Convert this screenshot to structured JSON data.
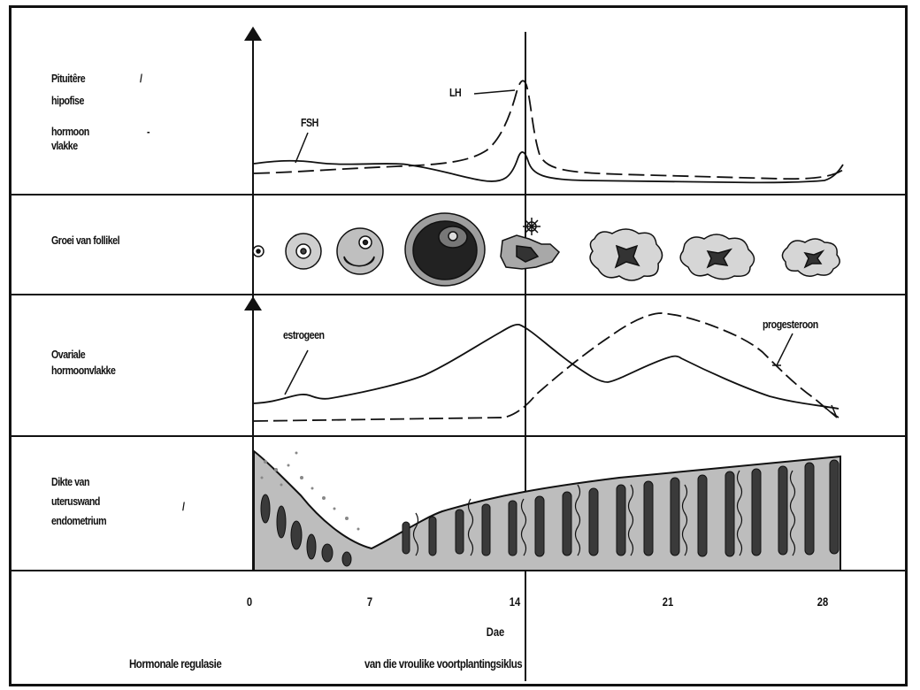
{
  "rows": {
    "pituitary": {
      "label_lines": [
        "Pituitêre",
        "hipofise",
        "hormoon",
        "vlakke"
      ],
      "marks": [
        "/",
        "-"
      ]
    },
    "follicle": {
      "label_lines": [
        "Groei van follikel"
      ]
    },
    "ovarian": {
      "label_lines": [
        "Ovariale",
        "hormoonvlakke"
      ]
    },
    "uterus": {
      "label_lines": [
        "Dikte van",
        "uteruswand",
        "endometrium"
      ],
      "marks": [
        "/"
      ]
    }
  },
  "curve_labels": {
    "fsh": "FSH",
    "lh": "LH",
    "estrogen": "estrogeen",
    "progesterone": "progesteroon"
  },
  "day_axis": {
    "ticks": [
      "0",
      "7",
      "14",
      "21",
      "28"
    ],
    "label": "Dae"
  },
  "caption": {
    "left": "Hormonale regulasie",
    "right": "van die vroulike voortplantingsiklus"
  },
  "colors": {
    "line": "#111111",
    "tissue": "#bdbdbd",
    "gland": "#3a3a3a"
  }
}
